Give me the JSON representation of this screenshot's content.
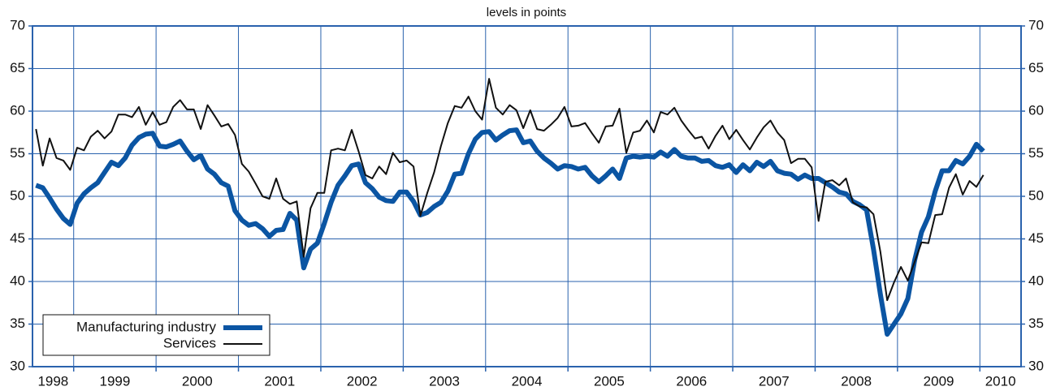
{
  "chart_data": {
    "type": "line",
    "subtitle": "levels in points",
    "x": [
      1998.542,
      1998.625,
      1998.708,
      1998.792,
      1998.875,
      1998.958,
      1999.042,
      1999.125,
      1999.208,
      1999.292,
      1999.375,
      1999.458,
      1999.542,
      1999.625,
      1999.708,
      1999.792,
      1999.875,
      1999.958,
      2000.042,
      2000.125,
      2000.208,
      2000.292,
      2000.375,
      2000.458,
      2000.542,
      2000.625,
      2000.708,
      2000.792,
      2000.875,
      2000.958,
      2001.042,
      2001.125,
      2001.208,
      2001.292,
      2001.375,
      2001.458,
      2001.542,
      2001.625,
      2001.708,
      2001.792,
      2001.875,
      2001.958,
      2002.042,
      2002.125,
      2002.208,
      2002.292,
      2002.375,
      2002.458,
      2002.542,
      2002.625,
      2002.708,
      2002.792,
      2002.875,
      2002.958,
      2003.042,
      2003.125,
      2003.208,
      2003.292,
      2003.375,
      2003.458,
      2003.542,
      2003.625,
      2003.708,
      2003.792,
      2003.875,
      2003.958,
      2004.042,
      2004.125,
      2004.208,
      2004.292,
      2004.375,
      2004.458,
      2004.542,
      2004.625,
      2004.708,
      2004.792,
      2004.875,
      2004.958,
      2005.042,
      2005.125,
      2005.208,
      2005.292,
      2005.375,
      2005.458,
      2005.542,
      2005.625,
      2005.708,
      2005.792,
      2005.875,
      2005.958,
      2006.042,
      2006.125,
      2006.208,
      2006.292,
      2006.375,
      2006.458,
      2006.542,
      2006.625,
      2006.708,
      2006.792,
      2006.875,
      2006.958,
      2007.042,
      2007.125,
      2007.208,
      2007.292,
      2007.375,
      2007.458,
      2007.542,
      2007.625,
      2007.708,
      2007.792,
      2007.875,
      2007.958,
      2008.042,
      2008.125,
      2008.208,
      2008.292,
      2008.375,
      2008.458,
      2008.542,
      2008.625,
      2008.708,
      2008.792,
      2008.875,
      2008.958,
      2009.042,
      2009.125,
      2009.208,
      2009.292,
      2009.375,
      2009.458,
      2009.542,
      2009.625,
      2009.708,
      2009.792,
      2009.875,
      2009.958,
      2010.042
    ],
    "series": [
      {
        "name": "Manufacturing industry",
        "color": "#0b55a3",
        "width": 6,
        "values": [
          51.3,
          51.0,
          49.8,
          48.5,
          47.4,
          46.7,
          49.2,
          50.3,
          51.0,
          51.6,
          52.8,
          54.0,
          53.6,
          54.5,
          56.0,
          56.9,
          57.3,
          57.4,
          55.9,
          55.8,
          56.1,
          56.5,
          55.3,
          54.3,
          54.8,
          53.2,
          52.6,
          51.6,
          51.2,
          48.3,
          47.2,
          46.6,
          46.8,
          46.2,
          45.3,
          46.0,
          46.1,
          48.0,
          47.2,
          41.6,
          43.8,
          44.5,
          46.8,
          49.3,
          51.3,
          52.4,
          53.6,
          53.8,
          51.6,
          50.9,
          49.9,
          49.5,
          49.4,
          50.5,
          50.5,
          49.4,
          47.8,
          48.1,
          48.8,
          49.3,
          50.6,
          52.6,
          52.7,
          55.0,
          56.7,
          57.5,
          57.6,
          56.6,
          57.2,
          57.7,
          57.8,
          56.3,
          56.5,
          55.3,
          54.5,
          53.9,
          53.2,
          53.6,
          53.5,
          53.2,
          53.4,
          52.4,
          51.7,
          52.4,
          53.2,
          52.1,
          54.5,
          54.7,
          54.6,
          54.7,
          54.6,
          55.2,
          54.7,
          55.5,
          54.7,
          54.5,
          54.5,
          54.1,
          54.2,
          53.6,
          53.4,
          53.7,
          52.8,
          53.7,
          53.0,
          54.0,
          53.5,
          54.1,
          53.0,
          52.7,
          52.6,
          52.0,
          52.5,
          52.1,
          52.1,
          51.6,
          51.1,
          50.5,
          50.3,
          49.4,
          49.0,
          48.4,
          43.8,
          38.5,
          33.8,
          35.0,
          36.2,
          38.0,
          42.5,
          45.8,
          47.6,
          50.6,
          53.0,
          53.0,
          54.2,
          53.8,
          54.7,
          56.1,
          55.3
        ]
      },
      {
        "name": "Services",
        "color": "#111111",
        "width": 2,
        "values": [
          57.9,
          53.6,
          56.8,
          54.5,
          54.2,
          53.1,
          55.7,
          55.4,
          57.0,
          57.7,
          56.8,
          57.6,
          59.6,
          59.6,
          59.3,
          60.5,
          58.4,
          59.9,
          58.4,
          58.7,
          60.5,
          61.3,
          60.2,
          60.2,
          57.9,
          60.7,
          59.5,
          58.2,
          58.5,
          57.2,
          53.8,
          52.9,
          51.5,
          50.0,
          49.7,
          52.1,
          49.7,
          49.1,
          49.4,
          42.9,
          48.6,
          50.4,
          50.4,
          55.4,
          55.6,
          55.4,
          57.8,
          55.3,
          52.5,
          52.1,
          53.5,
          52.6,
          55.1,
          54.0,
          54.2,
          53.5,
          47.7,
          50.4,
          52.8,
          55.9,
          58.6,
          60.6,
          60.4,
          61.7,
          60.0,
          59.0,
          63.8,
          60.4,
          59.6,
          60.7,
          60.1,
          58.0,
          60.1,
          57.9,
          57.7,
          58.4,
          59.2,
          60.5,
          58.2,
          58.3,
          58.6,
          57.4,
          56.3,
          58.2,
          58.3,
          60.3,
          55.1,
          57.5,
          57.7,
          58.9,
          57.5,
          59.9,
          59.6,
          60.4,
          58.9,
          57.8,
          56.8,
          57.0,
          55.6,
          57.1,
          58.3,
          56.7,
          57.8,
          56.6,
          55.5,
          56.9,
          58.1,
          58.9,
          57.5,
          56.6,
          53.9,
          54.4,
          54.4,
          53.4,
          47.1,
          51.7,
          51.9,
          51.3,
          52.1,
          49.3,
          48.8,
          48.7,
          47.9,
          43.5,
          37.8,
          39.9,
          41.7,
          40.1,
          42.3,
          44.6,
          44.5,
          47.8,
          47.9,
          51.0,
          52.6,
          50.2,
          51.8,
          51.1,
          52.5
        ]
      }
    ],
    "xlim": [
      1998.5,
      2010.5
    ],
    "xticks": [
      {
        "value": 1998.75,
        "label": "1998"
      },
      {
        "value": 1999.5,
        "label": "1999"
      },
      {
        "value": 2000.5,
        "label": "2000"
      },
      {
        "value": 2001.5,
        "label": "2001"
      },
      {
        "value": 2002.5,
        "label": "2002"
      },
      {
        "value": 2003.5,
        "label": "2003"
      },
      {
        "value": 2004.5,
        "label": "2004"
      },
      {
        "value": 2005.5,
        "label": "2005"
      },
      {
        "value": 2006.5,
        "label": "2006"
      },
      {
        "value": 2007.5,
        "label": "2007"
      },
      {
        "value": 2008.5,
        "label": "2008"
      },
      {
        "value": 2009.5,
        "label": "2009"
      },
      {
        "value": 2010.25,
        "label": "2010"
      }
    ],
    "xgrid": [
      1999,
      2000,
      2001,
      2002,
      2003,
      2004,
      2005,
      2006,
      2007,
      2008,
      2009,
      2010
    ],
    "ylim": [
      30,
      70
    ],
    "yticks": [
      30,
      35,
      40,
      45,
      50,
      55,
      60,
      65,
      70
    ],
    "grid": true,
    "grid_color": "#2a62ad",
    "legend": "lower left"
  }
}
